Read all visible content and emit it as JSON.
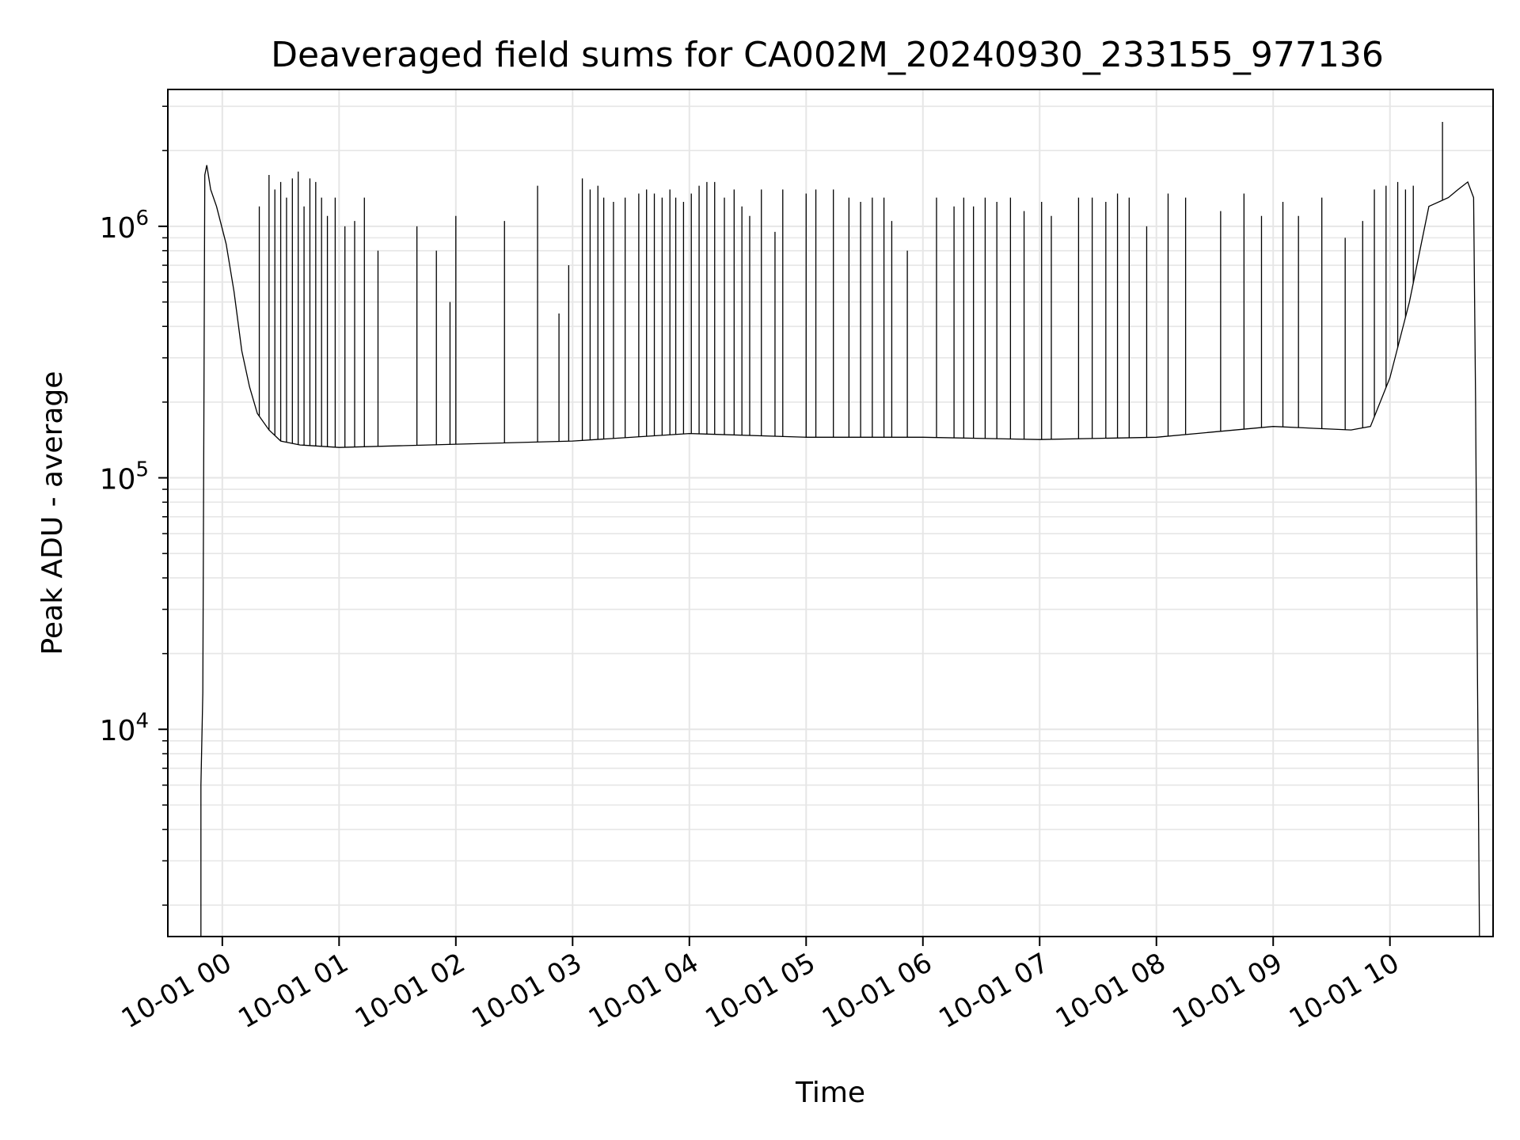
{
  "chart_data": {
    "type": "line",
    "title": "Deaveraged field sums for CA002M_20240930_233155_977136",
    "xlabel": "Time",
    "ylabel": "Peak ADU - average",
    "yscale": "log",
    "xlim": [
      "2024-09-30 23:32",
      "2024-10-01 10:53"
    ],
    "ylim": [
      1500,
      3500000
    ],
    "grid": true,
    "line_color": "#000000",
    "x_ticks": [
      {
        "value": "2024-10-01 00:00",
        "label": "10-01 00"
      },
      {
        "value": "2024-10-01 01:00",
        "label": "10-01 01"
      },
      {
        "value": "2024-10-01 02:00",
        "label": "10-01 02"
      },
      {
        "value": "2024-10-01 03:00",
        "label": "10-01 03"
      },
      {
        "value": "2024-10-01 04:00",
        "label": "10-01 04"
      },
      {
        "value": "2024-10-01 05:00",
        "label": "10-01 05"
      },
      {
        "value": "2024-10-01 06:00",
        "label": "10-01 06"
      },
      {
        "value": "2024-10-01 07:00",
        "label": "10-01 07"
      },
      {
        "value": "2024-10-01 08:00",
        "label": "10-01 08"
      },
      {
        "value": "2024-10-01 09:00",
        "label": "10-01 09"
      },
      {
        "value": "2024-10-01 10:00",
        "label": "10-01 10"
      }
    ],
    "y_ticks": [
      {
        "value": 10000,
        "base": "10",
        "exp": "4"
      },
      {
        "value": 100000,
        "base": "10",
        "exp": "5"
      },
      {
        "value": 1000000,
        "base": "10",
        "exp": "6"
      }
    ],
    "series": [
      {
        "points": [
          [
            "2024-09-30 23:49",
            1500
          ],
          [
            "2024-09-30 23:49",
            6000
          ],
          [
            "2024-09-30 23:50",
            14000
          ],
          [
            "2024-09-30 23:51",
            1600000
          ],
          [
            "2024-09-30 23:52",
            1750000
          ],
          [
            "2024-09-30 23:54",
            1400000
          ],
          [
            "2024-09-30 23:57",
            1200000
          ],
          [
            "2024-10-01 00:02",
            850000
          ],
          [
            "2024-10-01 00:06",
            550000
          ],
          [
            "2024-10-01 00:10",
            320000
          ],
          [
            "2024-10-01 00:14",
            230000
          ],
          [
            "2024-10-01 00:18",
            180000
          ],
          [
            "2024-10-01 00:24",
            155000
          ],
          [
            "2024-10-01 00:30",
            140000
          ],
          [
            "2024-10-01 00:40",
            135000
          ],
          [
            "2024-10-01 01:00",
            132000
          ],
          [
            "2024-10-01 02:00",
            136000
          ],
          [
            "2024-10-01 03:00",
            140000
          ],
          [
            "2024-10-01 04:00",
            150000
          ],
          [
            "2024-10-01 05:00",
            145000
          ],
          [
            "2024-10-01 06:00",
            145000
          ],
          [
            "2024-10-01 07:00",
            142000
          ],
          [
            "2024-10-01 08:00",
            145000
          ],
          [
            "2024-10-01 09:00",
            160000
          ],
          [
            "2024-10-01 09:40",
            155000
          ],
          [
            "2024-10-01 09:50",
            160000
          ],
          [
            "2024-10-01 10:00",
            250000
          ],
          [
            "2024-10-01 10:10",
            500000
          ],
          [
            "2024-10-01 10:20",
            1200000
          ],
          [
            "2024-10-01 10:30",
            1300000
          ],
          [
            "2024-10-01 10:35",
            1400000
          ],
          [
            "2024-10-01 10:40",
            1500000
          ],
          [
            "2024-10-01 10:43",
            1300000
          ],
          [
            "2024-10-01 10:44",
            200000
          ],
          [
            "2024-10-01 10:45",
            16000
          ],
          [
            "2024-10-01 10:46",
            1500
          ]
        ],
        "spikes": [
          [
            "2024-10-01 00:19",
            1200000
          ],
          [
            "2024-10-01 00:24",
            1600000
          ],
          [
            "2024-10-01 00:27",
            1400000
          ],
          [
            "2024-10-01 00:30",
            1500000
          ],
          [
            "2024-10-01 00:33",
            1300000
          ],
          [
            "2024-10-01 00:36",
            1550000
          ],
          [
            "2024-10-01 00:39",
            1650000
          ],
          [
            "2024-10-01 00:42",
            1200000
          ],
          [
            "2024-10-01 00:45",
            1550000
          ],
          [
            "2024-10-01 00:48",
            1500000
          ],
          [
            "2024-10-01 00:51",
            1300000
          ],
          [
            "2024-10-01 00:54",
            1100000
          ],
          [
            "2024-10-01 00:58",
            1300000
          ],
          [
            "2024-10-01 01:03",
            1000000
          ],
          [
            "2024-10-01 01:08",
            1050000
          ],
          [
            "2024-10-01 01:13",
            1300000
          ],
          [
            "2024-10-01 01:20",
            800000
          ],
          [
            "2024-10-01 01:40",
            1000000
          ],
          [
            "2024-10-01 01:50",
            800000
          ],
          [
            "2024-10-01 01:57",
            500000
          ],
          [
            "2024-10-01 02:00",
            1100000
          ],
          [
            "2024-10-01 02:25",
            1050000
          ],
          [
            "2024-10-01 02:42",
            1450000
          ],
          [
            "2024-10-01 02:53",
            450000
          ],
          [
            "2024-10-01 02:58",
            700000
          ],
          [
            "2024-10-01 03:05",
            1550000
          ],
          [
            "2024-10-01 03:09",
            1400000
          ],
          [
            "2024-10-01 03:13",
            1450000
          ],
          [
            "2024-10-01 03:16",
            1300000
          ],
          [
            "2024-10-01 03:21",
            1250000
          ],
          [
            "2024-10-01 03:27",
            1300000
          ],
          [
            "2024-10-01 03:34",
            1350000
          ],
          [
            "2024-10-01 03:38",
            1400000
          ],
          [
            "2024-10-01 03:42",
            1350000
          ],
          [
            "2024-10-01 03:46",
            1300000
          ],
          [
            "2024-10-01 03:50",
            1400000
          ],
          [
            "2024-10-01 03:53",
            1300000
          ],
          [
            "2024-10-01 03:57",
            1250000
          ],
          [
            "2024-10-01 04:01",
            1350000
          ],
          [
            "2024-10-01 04:05",
            1450000
          ],
          [
            "2024-10-01 04:09",
            1500000
          ],
          [
            "2024-10-01 04:13",
            1500000
          ],
          [
            "2024-10-01 04:18",
            1300000
          ],
          [
            "2024-10-01 04:23",
            1400000
          ],
          [
            "2024-10-01 04:27",
            1200000
          ],
          [
            "2024-10-01 04:31",
            1100000
          ],
          [
            "2024-10-01 04:37",
            1400000
          ],
          [
            "2024-10-01 04:44",
            950000
          ],
          [
            "2024-10-01 04:48",
            1400000
          ],
          [
            "2024-10-01 05:00",
            1350000
          ],
          [
            "2024-10-01 05:05",
            1400000
          ],
          [
            "2024-10-01 05:14",
            1400000
          ],
          [
            "2024-10-01 05:22",
            1300000
          ],
          [
            "2024-10-01 05:28",
            1250000
          ],
          [
            "2024-10-01 05:34",
            1300000
          ],
          [
            "2024-10-01 05:40",
            1300000
          ],
          [
            "2024-10-01 05:44",
            1050000
          ],
          [
            "2024-10-01 05:52",
            800000
          ],
          [
            "2024-10-01 06:07",
            1300000
          ],
          [
            "2024-10-01 06:16",
            1200000
          ],
          [
            "2024-10-01 06:21",
            1300000
          ],
          [
            "2024-10-01 06:26",
            1200000
          ],
          [
            "2024-10-01 06:32",
            1300000
          ],
          [
            "2024-10-01 06:38",
            1250000
          ],
          [
            "2024-10-01 06:45",
            1300000
          ],
          [
            "2024-10-01 06:52",
            1150000
          ],
          [
            "2024-10-01 07:01",
            1250000
          ],
          [
            "2024-10-01 07:06",
            1100000
          ],
          [
            "2024-10-01 07:20",
            1300000
          ],
          [
            "2024-10-01 07:27",
            1300000
          ],
          [
            "2024-10-01 07:34",
            1250000
          ],
          [
            "2024-10-01 07:40",
            1350000
          ],
          [
            "2024-10-01 07:46",
            1300000
          ],
          [
            "2024-10-01 07:55",
            1000000
          ],
          [
            "2024-10-01 08:06",
            1350000
          ],
          [
            "2024-10-01 08:15",
            1300000
          ],
          [
            "2024-10-01 08:33",
            1150000
          ],
          [
            "2024-10-01 08:45",
            1350000
          ],
          [
            "2024-10-01 08:54",
            1100000
          ],
          [
            "2024-10-01 09:05",
            1250000
          ],
          [
            "2024-10-01 09:13",
            1100000
          ],
          [
            "2024-10-01 09:25",
            1300000
          ],
          [
            "2024-10-01 09:37",
            900000
          ],
          [
            "2024-10-01 09:46",
            1050000
          ],
          [
            "2024-10-01 09:52",
            1400000
          ],
          [
            "2024-10-01 09:58",
            1450000
          ],
          [
            "2024-10-01 10:04",
            1500000
          ],
          [
            "2024-10-01 10:08",
            1400000
          ],
          [
            "2024-10-01 10:12",
            1450000
          ],
          [
            "2024-10-01 10:27",
            2600000
          ]
        ]
      }
    ]
  }
}
